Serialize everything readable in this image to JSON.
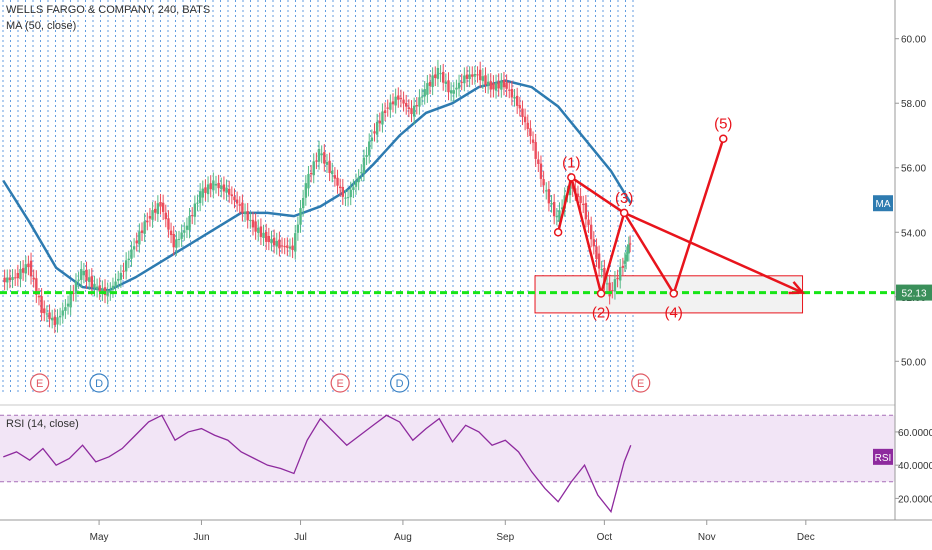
{
  "header": {
    "symbol_line": "WELLS FARGO & COMPANY, 240, BATS",
    "ma_line": "MA (50, close)",
    "rsi_line": "RSI (14, close)"
  },
  "badges": {
    "price": "52.13",
    "ma": "MA",
    "rsi": "RSI"
  },
  "colors": {
    "up": "#53b987",
    "down": "#eb4d5c",
    "ma": "#2e7bb0",
    "pattern": "#e8141c",
    "level": "#17e517",
    "rsi": "#8e2a9e",
    "grid_dash": "#2f7ed8",
    "rsi_band": "#e9d3f0"
  },
  "chart_data": [
    {
      "type": "line",
      "title": "WELLS FARGO & COMPANY, 240, BATS",
      "x_tick_labels": [
        "May",
        "Jun",
        "Jul",
        "Aug",
        "Sep",
        "Oct",
        "Nov",
        "Dec"
      ],
      "y_tick_labels": [
        "50.00",
        "52.00",
        "54.00",
        "56.00",
        "58.00",
        "60.00"
      ],
      "ylim": [
        48.8,
        61.2
      ],
      "series": [
        {
          "name": "MA (50, close)",
          "x": [
            "2018-04-02",
            "2018-04-10",
            "2018-04-18",
            "2018-04-26",
            "2018-05-04",
            "2018-05-12",
            "2018-05-20",
            "2018-05-28",
            "2018-06-05",
            "2018-06-13",
            "2018-06-21",
            "2018-06-29",
            "2018-07-07",
            "2018-07-15",
            "2018-07-23",
            "2018-07-31",
            "2018-08-08",
            "2018-08-16",
            "2018-08-24",
            "2018-09-01",
            "2018-09-09",
            "2018-09-17",
            "2018-09-25",
            "2018-10-03",
            "2018-10-09"
          ],
          "values": [
            55.6,
            54.3,
            52.9,
            52.3,
            52.2,
            52.6,
            53.1,
            53.6,
            54.1,
            54.6,
            54.6,
            54.5,
            54.8,
            55.3,
            56.1,
            57.0,
            57.7,
            58.0,
            58.5,
            58.7,
            58.5,
            57.9,
            56.9,
            55.9,
            54.9
          ]
        },
        {
          "name": "price",
          "x": [
            "2018-04-02",
            "2018-04-06",
            "2018-04-10",
            "2018-04-14",
            "2018-04-18",
            "2018-04-22",
            "2018-04-26",
            "2018-04-30",
            "2018-05-04",
            "2018-05-08",
            "2018-05-12",
            "2018-05-16",
            "2018-05-20",
            "2018-05-24",
            "2018-05-28",
            "2018-06-01",
            "2018-06-05",
            "2018-06-09",
            "2018-06-13",
            "2018-06-17",
            "2018-06-21",
            "2018-06-25",
            "2018-06-29",
            "2018-07-03",
            "2018-07-07",
            "2018-07-11",
            "2018-07-15",
            "2018-07-19",
            "2018-07-23",
            "2018-07-27",
            "2018-07-31",
            "2018-08-04",
            "2018-08-08",
            "2018-08-12",
            "2018-08-16",
            "2018-08-20",
            "2018-08-24",
            "2018-08-28",
            "2018-09-01",
            "2018-09-05",
            "2018-09-09",
            "2018-09-13",
            "2018-09-17",
            "2018-09-21",
            "2018-09-25",
            "2018-09-29",
            "2018-10-03",
            "2018-10-07",
            "2018-10-09"
          ],
          "values": [
            52.5,
            52.6,
            53.0,
            51.6,
            51.2,
            51.8,
            52.8,
            52.3,
            52.1,
            52.7,
            53.6,
            54.4,
            54.9,
            53.6,
            54.2,
            55.2,
            55.5,
            55.3,
            54.8,
            54.2,
            53.8,
            53.6,
            53.5,
            55.5,
            56.5,
            55.8,
            55.0,
            55.7,
            57.0,
            57.8,
            58.2,
            57.7,
            58.4,
            59.0,
            58.3,
            58.8,
            58.9,
            58.5,
            58.6,
            58.0,
            57.0,
            55.4,
            54.4,
            55.5,
            54.8,
            53.2,
            52.1,
            53.0,
            53.7
          ]
        },
        {
          "name": "level",
          "x": [
            "2018-04-01",
            "2018-12-28"
          ],
          "values": [
            52.13,
            52.13
          ]
        }
      ],
      "annotations": {
        "wave_labels": [
          "(1)",
          "(2)",
          "(3)",
          "(4)",
          "(5)"
        ],
        "wave_points": [
          {
            "label": "(1)",
            "x": "2018-09-21",
            "y": 55.7
          },
          {
            "label": "(2)",
            "x": "2018-09-30",
            "y": 52.1
          },
          {
            "label": "(3)",
            "x": "2018-10-07",
            "y": 54.6
          },
          {
            "label": "(4)",
            "x": "2018-10-22",
            "y": 52.1
          },
          {
            "label": "(5)",
            "x": "2018-11-06",
            "y": 56.9
          }
        ],
        "extra_points": [
          {
            "x": "2018-09-17",
            "y": 54.0
          }
        ],
        "arrow": {
          "from_x": "2018-10-07",
          "from_y": 54.6,
          "to_x": "2018-11-30",
          "to_y": 52.13
        },
        "zone": {
          "x_start": "2018-09-10",
          "x_end": "2018-11-30",
          "y_low": 51.5,
          "y_high": 52.65
        },
        "event_markers": [
          {
            "label": "E",
            "x": "2018-04-13"
          },
          {
            "label": "D",
            "x": "2018-05-01"
          },
          {
            "label": "E",
            "x": "2018-07-13"
          },
          {
            "label": "D",
            "x": "2018-07-31"
          },
          {
            "label": "E",
            "x": "2018-10-12"
          }
        ]
      }
    },
    {
      "type": "line",
      "title": "RSI (14, close)",
      "y_tick_labels": [
        "20.0000",
        "40.0000",
        "60.0000"
      ],
      "ylim": [
        10,
        75
      ],
      "bands": [
        30,
        70
      ],
      "series": [
        {
          "name": "RSI (14, close)",
          "x": [
            "2018-04-02",
            "2018-04-06",
            "2018-04-10",
            "2018-04-14",
            "2018-04-18",
            "2018-04-22",
            "2018-04-26",
            "2018-04-30",
            "2018-05-04",
            "2018-05-08",
            "2018-05-12",
            "2018-05-16",
            "2018-05-20",
            "2018-05-24",
            "2018-05-28",
            "2018-06-01",
            "2018-06-05",
            "2018-06-09",
            "2018-06-13",
            "2018-06-17",
            "2018-06-21",
            "2018-06-25",
            "2018-06-29",
            "2018-07-03",
            "2018-07-07",
            "2018-07-11",
            "2018-07-15",
            "2018-07-19",
            "2018-07-23",
            "2018-07-27",
            "2018-07-31",
            "2018-08-04",
            "2018-08-08",
            "2018-08-12",
            "2018-08-16",
            "2018-08-20",
            "2018-08-24",
            "2018-08-28",
            "2018-09-01",
            "2018-09-05",
            "2018-09-09",
            "2018-09-13",
            "2018-09-17",
            "2018-09-21",
            "2018-09-25",
            "2018-09-29",
            "2018-10-03",
            "2018-10-07",
            "2018-10-09"
          ],
          "values": [
            45,
            48,
            43,
            50,
            40,
            44,
            52,
            42,
            45,
            50,
            58,
            66,
            70,
            55,
            60,
            62,
            58,
            55,
            48,
            44,
            40,
            38,
            35,
            55,
            68,
            60,
            52,
            58,
            64,
            70,
            66,
            55,
            62,
            68,
            54,
            64,
            60,
            52,
            55,
            48,
            36,
            26,
            18,
            30,
            40,
            22,
            12,
            42,
            52
          ]
        }
      ]
    }
  ]
}
